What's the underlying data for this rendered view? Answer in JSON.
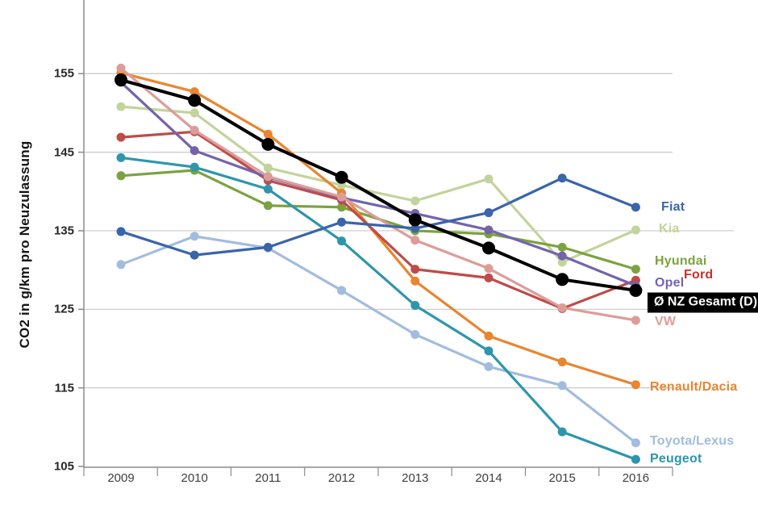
{
  "chart_data": {
    "type": "line",
    "title": "",
    "ylabel": "CO2 in g/km pro Neuzulassung",
    "xlabel": "",
    "x": [
      2009,
      2010,
      2011,
      2012,
      2013,
      2014,
      2015,
      2016
    ],
    "ylim": [
      105,
      160
    ],
    "yticks": [
      105,
      115,
      125,
      135,
      145,
      155
    ],
    "grid": true,
    "legend_position": "right-end-labels",
    "colors": {
      "gridline": "#C9C9C9",
      "axis": "#8C8C8C",
      "tick_text": "#262626",
      "year_text": "#3F3F3F",
      "background": "#FFFFFF",
      "average_box_bg": "#000000",
      "average_box_text": "#FFFFFF"
    },
    "series": [
      {
        "name": "Toyota/Lexus",
        "color": "#A2BCDF",
        "values": [
          130.7,
          134.3,
          132.8,
          127.4,
          121.8,
          117.7,
          115.3,
          108.0
        ]
      },
      {
        "name": "Kia",
        "color": "#C2D49B",
        "values": [
          150.8,
          150.0,
          143.0,
          140.8,
          138.8,
          141.6,
          131.0,
          135.1
        ]
      },
      {
        "name": "Hyundai",
        "color": "#7CA23F",
        "values": [
          142.0,
          142.7,
          138.2,
          138.0,
          135.0,
          134.6,
          132.9,
          130.1
        ]
      },
      {
        "name": "Renault/Dacia",
        "color": "#E9852F",
        "values": [
          155.1,
          152.7,
          147.3,
          139.8,
          128.6,
          121.6,
          118.3,
          115.4
        ]
      },
      {
        "name": "Ford",
        "color": "#BE4B48",
        "label_color": "#C9302C",
        "values": [
          146.9,
          147.6,
          141.4,
          138.9,
          130.1,
          129.0,
          125.1,
          128.7
        ]
      },
      {
        "name": "Opel",
        "color": "#7463AC",
        "values": [
          153.9,
          145.2,
          141.8,
          139.2,
          137.2,
          135.1,
          131.8,
          128.0
        ]
      },
      {
        "name": "VW",
        "color": "#DE9C98",
        "values": [
          155.7,
          147.8,
          141.9,
          139.3,
          133.8,
          130.2,
          125.2,
          123.6
        ]
      },
      {
        "name": "Peugeot",
        "color": "#2E96AC",
        "values": [
          144.3,
          143.1,
          140.3,
          133.7,
          125.5,
          119.7,
          109.4,
          105.9
        ]
      },
      {
        "name": "Fiat",
        "color": "#3A64AB",
        "values": [
          134.9,
          131.9,
          132.9,
          136.1,
          135.3,
          137.3,
          141.7,
          138.0
        ]
      },
      {
        "name": "Ø NZ Gesamt (D)",
        "color": "#000000",
        "emphasis": true,
        "values": [
          154.2,
          151.6,
          146.0,
          141.8,
          136.4,
          132.8,
          128.8,
          127.4
        ]
      }
    ]
  }
}
